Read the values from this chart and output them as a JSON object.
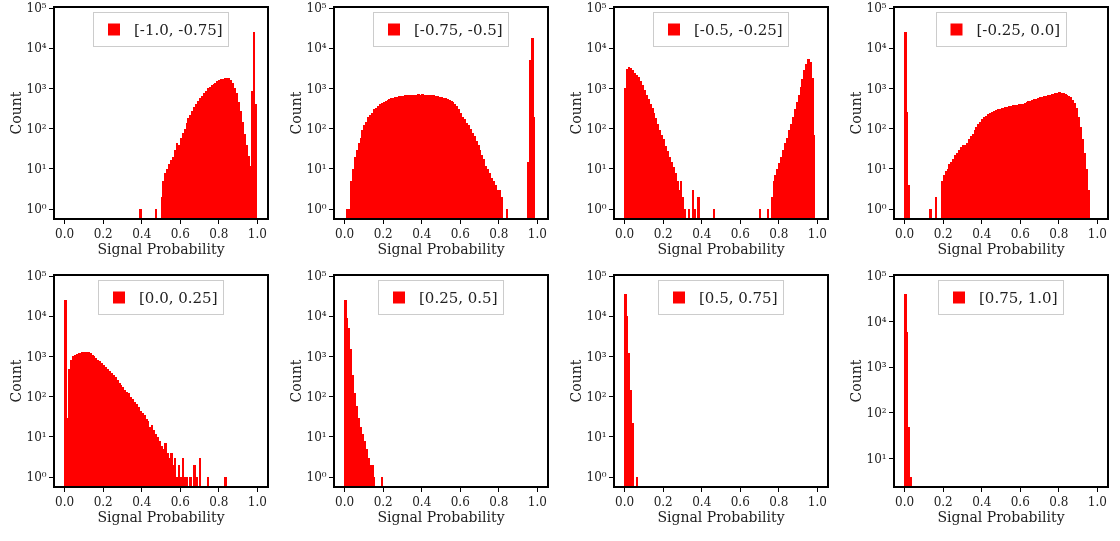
{
  "chart_data": [
    {
      "type": "histogram",
      "xlabel": "Signal Probability",
      "ylabel": "Count",
      "log": true,
      "legend": "top",
      "xlim": [
        -0.05,
        1.05
      ],
      "xticks": [
        {
          "value": 0,
          "label": "0.0"
        },
        {
          "value": 0.2,
          "label": "0.2"
        },
        {
          "value": 0.4,
          "label": "0.4"
        },
        {
          "value": 0.6,
          "label": "0.6"
        },
        {
          "value": 0.8,
          "label": "0.8"
        },
        {
          "value": 1,
          "label": "1.0"
        }
      ],
      "ylim": [
        0.6,
        100000
      ],
      "yticks": [
        {
          "value": 1,
          "label": "10⁰"
        },
        {
          "value": 10,
          "label": "10¹"
        },
        {
          "value": 100,
          "label": "10²"
        },
        {
          "value": 1000,
          "label": "10³"
        },
        {
          "value": 10000,
          "label": "10⁴"
        },
        {
          "value": 100000,
          "label": "10⁵"
        }
      ],
      "bins": [
        0.38,
        0.39,
        0.4,
        0.41,
        0.42,
        0.43,
        0.44,
        0.45,
        0.46,
        0.47,
        0.48,
        0.49,
        0.5,
        0.51,
        0.52,
        0.53,
        0.54,
        0.55,
        0.56,
        0.57,
        0.58,
        0.59,
        0.6,
        0.61,
        0.62,
        0.63,
        0.64,
        0.65,
        0.66,
        0.67,
        0.68,
        0.69,
        0.7,
        0.71,
        0.72,
        0.73,
        0.74,
        0.75,
        0.76,
        0.77,
        0.78,
        0.79,
        0.8,
        0.81,
        0.82,
        0.83,
        0.84,
        0.85,
        0.86,
        0.87,
        0.88,
        0.89,
        0.9,
        0.91,
        0.92,
        0.93,
        0.94,
        0.95,
        0.96,
        0.97,
        0.98,
        0.99,
        1.0
      ],
      "series": [
        {
          "name": "[-1.0, -0.75]",
          "color": "#ff0000",
          "values": [
            null,
            1,
            null,
            null,
            null,
            null,
            null,
            null,
            null,
            1,
            null,
            null,
            2,
            5,
            8,
            10,
            13,
            17,
            20,
            30,
            44,
            40,
            60,
            80,
            100,
            135,
            180,
            220,
            280,
            340,
            400,
            500,
            570,
            660,
            750,
            850,
            1000,
            1080,
            1200,
            1300,
            1400,
            1500,
            1600,
            1700,
            1750,
            1800,
            1850,
            1800,
            1650,
            1350,
            1050,
            750,
            470,
            280,
            150,
            75,
            40,
            21,
            12,
            850,
            25000,
            400
          ]
        }
      ]
    },
    {
      "type": "histogram",
      "xlabel": "Signal Probability",
      "ylabel": "Count",
      "log": true,
      "legend": "top",
      "xlim": [
        -0.05,
        1.05
      ],
      "xticks": [
        {
          "value": 0,
          "label": "0.0"
        },
        {
          "value": 0.2,
          "label": "0.2"
        },
        {
          "value": 0.4,
          "label": "0.4"
        },
        {
          "value": 0.6,
          "label": "0.6"
        },
        {
          "value": 0.8,
          "label": "0.8"
        },
        {
          "value": 1,
          "label": "1.0"
        }
      ],
      "ylim": [
        0.6,
        100000
      ],
      "yticks": [
        {
          "value": 1,
          "label": "10⁰"
        },
        {
          "value": 10,
          "label": "10¹"
        },
        {
          "value": 100,
          "label": "10²"
        },
        {
          "value": 1000,
          "label": "10³"
        },
        {
          "value": 10000,
          "label": "10⁴"
        },
        {
          "value": 100000,
          "label": "10⁵"
        }
      ],
      "bins": [
        0.01,
        0.02,
        0.03,
        0.04,
        0.05,
        0.06,
        0.07,
        0.08,
        0.09,
        0.1,
        0.11,
        0.12,
        0.13,
        0.14,
        0.15,
        0.16,
        0.17,
        0.18,
        0.19,
        0.2,
        0.21,
        0.22,
        0.23,
        0.24,
        0.25,
        0.26,
        0.27,
        0.28,
        0.29,
        0.3,
        0.31,
        0.32,
        0.33,
        0.34,
        0.35,
        0.36,
        0.37,
        0.38,
        0.39,
        0.4,
        0.41,
        0.42,
        0.43,
        0.44,
        0.45,
        0.46,
        0.47,
        0.48,
        0.49,
        0.5,
        0.51,
        0.52,
        0.53,
        0.54,
        0.55,
        0.56,
        0.57,
        0.58,
        0.59,
        0.6,
        0.61,
        0.62,
        0.63,
        0.64,
        0.65,
        0.66,
        0.67,
        0.68,
        0.69,
        0.7,
        0.71,
        0.72,
        0.73,
        0.74,
        0.75,
        0.76,
        0.77,
        0.78,
        0.79,
        0.8,
        0.81,
        0.82,
        0.83,
        0.84,
        0.85,
        0.86,
        0.87,
        0.88,
        0.89,
        0.9,
        0.91,
        0.92,
        0.93,
        0.94,
        0.95,
        0.96,
        0.97,
        0.98,
        0.99
      ],
      "series": [
        {
          "name": "[-0.75, -0.5]",
          "color": "#ff0000",
          "values": [
            1,
            1,
            5,
            10,
            20,
            30,
            45,
            60,
            90,
            120,
            150,
            190,
            220,
            250,
            300,
            330,
            370,
            400,
            430,
            460,
            490,
            520,
            540,
            570,
            590,
            610,
            620,
            640,
            650,
            660,
            670,
            680,
            690,
            690,
            700,
            700,
            700,
            710,
            700,
            710,
            700,
            700,
            690,
            690,
            680,
            670,
            660,
            640,
            620,
            600,
            590,
            570,
            550,
            530,
            500,
            470,
            420,
            360,
            300,
            240,
            200,
            170,
            140,
            120,
            100,
            80,
            65,
            50,
            40,
            30,
            22,
            18,
            12,
            10,
            8,
            6,
            5,
            4,
            3,
            3,
            2,
            null,
            null,
            1,
            null,
            null,
            null,
            null,
            null,
            null,
            null,
            null,
            null,
            null,
            15,
            5000,
            18000,
            200
          ]
        }
      ]
    },
    {
      "type": "histogram",
      "xlabel": "Signal Probability",
      "ylabel": "Count",
      "log": true,
      "legend": "top",
      "xlim": [
        -0.05,
        1.05
      ],
      "xticks": [
        {
          "value": 0,
          "label": "0.0"
        },
        {
          "value": 0.2,
          "label": "0.2"
        },
        {
          "value": 0.4,
          "label": "0.4"
        },
        {
          "value": 0.6,
          "label": "0.6"
        },
        {
          "value": 0.8,
          "label": "0.8"
        },
        {
          "value": 1,
          "label": "1.0"
        }
      ],
      "ylim": [
        0.6,
        100000
      ],
      "yticks": [
        {
          "value": 1,
          "label": "10⁰"
        },
        {
          "value": 10,
          "label": "10¹"
        },
        {
          "value": 100,
          "label": "10²"
        },
        {
          "value": 1000,
          "label": "10³"
        },
        {
          "value": 10000,
          "label": "10⁴"
        },
        {
          "value": 100000,
          "label": "10⁵"
        }
      ],
      "bins": [
        0.0,
        0.01,
        0.02,
        0.03,
        0.04,
        0.05,
        0.06,
        0.07,
        0.08,
        0.09,
        0.1,
        0.11,
        0.12,
        0.13,
        0.14,
        0.15,
        0.16,
        0.17,
        0.18,
        0.19,
        0.2,
        0.21,
        0.22,
        0.23,
        0.24,
        0.25,
        0.26,
        0.27,
        0.28,
        0.29,
        0.3,
        0.31,
        0.32,
        0.33,
        0.34,
        0.35,
        0.36,
        0.37,
        0.38,
        0.39,
        0.4,
        0.41,
        0.42,
        0.43,
        0.44,
        0.45,
        0.46,
        0.47,
        0.48,
        0.49,
        0.5,
        0.51,
        0.52,
        0.53,
        0.54,
        0.55,
        0.56,
        0.57,
        0.58,
        0.59,
        0.6,
        0.61,
        0.62,
        0.63,
        0.64,
        0.65,
        0.66,
        0.67,
        0.68,
        0.69,
        0.7,
        0.71,
        0.72,
        0.73,
        0.74,
        0.75,
        0.76,
        0.77,
        0.78,
        0.79,
        0.8,
        0.81,
        0.82,
        0.83,
        0.84,
        0.85,
        0.86,
        0.87,
        0.88,
        0.89,
        0.9,
        0.91,
        0.92,
        0.93,
        0.94,
        0.95,
        0.96,
        0.97,
        0.98,
        0.99
      ],
      "series": [
        {
          "name": "[-0.5, -0.25]",
          "color": "#ff0000",
          "values": [
            1000,
            3000,
            3500,
            3200,
            2800,
            2400,
            2100,
            1900,
            1500,
            1200,
            900,
            700,
            550,
            420,
            320,
            250,
            180,
            130,
            95,
            70,
            55,
            38,
            28,
            20,
            15,
            11,
            8,
            5,
            3,
            5,
            2,
            1,
            null,
            1,
            null,
            3,
            1,
            null,
            2,
            null,
            null,
            null,
            null,
            null,
            null,
            null,
            1,
            null,
            null,
            null,
            null,
            null,
            null,
            null,
            null,
            null,
            null,
            null,
            null,
            null,
            null,
            null,
            null,
            null,
            null,
            null,
            null,
            null,
            null,
            null,
            1,
            null,
            null,
            null,
            1,
            null,
            2,
            5,
            7,
            10,
            14,
            20,
            30,
            45,
            60,
            90,
            130,
            200,
            300,
            450,
            700,
            1100,
            1700,
            2800,
            4000,
            5500,
            4500,
            1800,
            70
          ]
        }
      ]
    },
    {
      "type": "histogram",
      "xlabel": "Signal Probability",
      "ylabel": "Count",
      "log": true,
      "legend": "top",
      "xlim": [
        -0.05,
        1.05
      ],
      "xticks": [
        {
          "value": 0,
          "label": "0.0"
        },
        {
          "value": 0.2,
          "label": "0.2"
        },
        {
          "value": 0.4,
          "label": "0.4"
        },
        {
          "value": 0.6,
          "label": "0.6"
        },
        {
          "value": 0.8,
          "label": "0.8"
        },
        {
          "value": 1,
          "label": "1.0"
        }
      ],
      "ylim": [
        0.6,
        100000
      ],
      "yticks": [
        {
          "value": 1,
          "label": "10⁰"
        },
        {
          "value": 10,
          "label": "10¹"
        },
        {
          "value": 100,
          "label": "10²"
        },
        {
          "value": 1000,
          "label": "10³"
        },
        {
          "value": 10000,
          "label": "10⁴"
        },
        {
          "value": 100000,
          "label": "10⁵"
        }
      ],
      "bins": [
        0.0,
        0.01,
        0.02,
        0.03,
        0.04,
        0.05,
        0.06,
        0.07,
        0.08,
        0.09,
        0.1,
        0.11,
        0.12,
        0.13,
        0.14,
        0.15,
        0.16,
        0.17,
        0.18,
        0.19,
        0.2,
        0.21,
        0.22,
        0.23,
        0.24,
        0.25,
        0.26,
        0.27,
        0.28,
        0.29,
        0.3,
        0.31,
        0.32,
        0.33,
        0.34,
        0.35,
        0.36,
        0.37,
        0.38,
        0.39,
        0.4,
        0.41,
        0.42,
        0.43,
        0.44,
        0.45,
        0.46,
        0.47,
        0.48,
        0.49,
        0.5,
        0.51,
        0.52,
        0.53,
        0.54,
        0.55,
        0.56,
        0.57,
        0.58,
        0.59,
        0.6,
        0.61,
        0.62,
        0.63,
        0.64,
        0.65,
        0.66,
        0.67,
        0.68,
        0.69,
        0.7,
        0.71,
        0.72,
        0.73,
        0.74,
        0.75,
        0.76,
        0.77,
        0.78,
        0.79,
        0.8,
        0.81,
        0.82,
        0.83,
        0.84,
        0.85,
        0.86,
        0.87,
        0.88,
        0.89,
        0.9,
        0.91,
        0.92,
        0.93,
        0.94,
        0.95,
        0.96
      ],
      "series": [
        {
          "name": "[-0.25, 0.0]",
          "color": "#ff0000",
          "values": [
            25000,
            260,
            4,
            null,
            null,
            null,
            null,
            null,
            null,
            null,
            null,
            null,
            null,
            1,
            null,
            null,
            2,
            null,
            null,
            5,
            7,
            9,
            10,
            13,
            15,
            18,
            22,
            25,
            30,
            35,
            40,
            40,
            45,
            55,
            65,
            75,
            90,
            110,
            130,
            150,
            170,
            190,
            210,
            230,
            250,
            265,
            280,
            290,
            300,
            310,
            320,
            330,
            340,
            350,
            360,
            370,
            380,
            380,
            390,
            400,
            410,
            420,
            440,
            460,
            480,
            500,
            520,
            540,
            560,
            580,
            600,
            620,
            640,
            660,
            680,
            700,
            720,
            740,
            760,
            780,
            800,
            790,
            770,
            740,
            700,
            650,
            600,
            520,
            430,
            320,
            200,
            110,
            55,
            25,
            10,
            3
          ]
        }
      ]
    },
    {
      "type": "histogram",
      "xlabel": "Signal Probability",
      "ylabel": "Count",
      "log": true,
      "legend": "top",
      "xlim": [
        -0.05,
        1.05
      ],
      "xticks": [
        {
          "value": 0,
          "label": "0.0"
        },
        {
          "value": 0.2,
          "label": "0.2"
        },
        {
          "value": 0.4,
          "label": "0.4"
        },
        {
          "value": 0.6,
          "label": "0.6"
        },
        {
          "value": 0.8,
          "label": "0.8"
        },
        {
          "value": 1,
          "label": "1.0"
        }
      ],
      "ylim": [
        0.6,
        100000
      ],
      "yticks": [
        {
          "value": 1,
          "label": "10⁰"
        },
        {
          "value": 10,
          "label": "10¹"
        },
        {
          "value": 100,
          "label": "10²"
        },
        {
          "value": 1000,
          "label": "10³"
        },
        {
          "value": 10000,
          "label": "10⁴"
        },
        {
          "value": 100000,
          "label": "10⁵"
        }
      ],
      "bins": [
        0.0,
        0.01,
        0.02,
        0.03,
        0.04,
        0.05,
        0.06,
        0.07,
        0.08,
        0.09,
        0.1,
        0.11,
        0.12,
        0.13,
        0.14,
        0.15,
        0.16,
        0.17,
        0.18,
        0.19,
        0.2,
        0.21,
        0.22,
        0.23,
        0.24,
        0.25,
        0.26,
        0.27,
        0.28,
        0.29,
        0.3,
        0.31,
        0.32,
        0.33,
        0.34,
        0.35,
        0.36,
        0.37,
        0.38,
        0.39,
        0.4,
        0.41,
        0.42,
        0.43,
        0.44,
        0.45,
        0.46,
        0.47,
        0.48,
        0.49,
        0.5,
        0.51,
        0.52,
        0.53,
        0.54,
        0.55,
        0.56,
        0.57,
        0.58,
        0.59,
        0.6,
        0.61,
        0.62,
        0.63,
        0.64,
        0.65,
        0.66,
        0.67,
        0.68,
        0.69,
        0.7,
        0.71,
        0.72,
        0.73,
        0.74,
        0.75,
        0.76,
        0.77,
        0.78,
        0.79,
        0.8,
        0.81,
        0.82,
        0.83,
        0.84
      ],
      "series": [
        {
          "name": "[0.0, 0.25]",
          "color": "#ff0000",
          "values": [
            25000,
            30,
            500,
            800,
            1000,
            1100,
            1150,
            1200,
            1250,
            1280,
            1300,
            1300,
            1280,
            1200,
            1100,
            1000,
            900,
            820,
            750,
            680,
            620,
            560,
            500,
            440,
            390,
            340,
            300,
            260,
            220,
            190,
            170,
            150,
            130,
            120,
            100,
            85,
            75,
            65,
            55,
            45,
            40,
            35,
            28,
            25,
            18,
            20,
            15,
            12,
            10,
            8,
            6,
            5,
            7,
            4,
            3,
            4,
            2,
            3,
            1,
            2,
            1,
            3,
            1,
            1,
            null,
            1,
            null,
            2,
            1,
            null,
            3,
            null,
            null,
            null,
            1,
            null,
            null,
            null,
            null,
            null,
            null,
            null,
            null,
            1
          ]
        }
      ]
    },
    {
      "type": "histogram",
      "xlabel": "Signal Probability",
      "ylabel": "Count",
      "log": true,
      "legend": "top",
      "xlim": [
        -0.05,
        1.05
      ],
      "xticks": [
        {
          "value": 0,
          "label": "0.0"
        },
        {
          "value": 0.2,
          "label": "0.2"
        },
        {
          "value": 0.4,
          "label": "0.4"
        },
        {
          "value": 0.6,
          "label": "0.6"
        },
        {
          "value": 0.8,
          "label": "0.8"
        },
        {
          "value": 1,
          "label": "1.0"
        }
      ],
      "ylim": [
        0.6,
        100000
      ],
      "yticks": [
        {
          "value": 1,
          "label": "10⁰"
        },
        {
          "value": 10,
          "label": "10¹"
        },
        {
          "value": 100,
          "label": "10²"
        },
        {
          "value": 1000,
          "label": "10³"
        },
        {
          "value": 10000,
          "label": "10⁴"
        },
        {
          "value": 100000,
          "label": "10⁵"
        }
      ],
      "bins": [
        0.0,
        0.01,
        0.02,
        0.03,
        0.04,
        0.05,
        0.06,
        0.07,
        0.08,
        0.09,
        0.1,
        0.11,
        0.12,
        0.13,
        0.14,
        0.15,
        0.16,
        0.17,
        0.18,
        0.19,
        0.2
      ],
      "series": [
        {
          "name": "[0.25, 0.5]",
          "color": "#ff0000",
          "values": [
            25000,
            9000,
            5000,
            1500,
            350,
            120,
            60,
            30,
            18,
            12,
            8,
            5,
            3,
            2,
            2,
            1,
            null,
            null,
            null,
            1
          ]
        }
      ]
    },
    {
      "type": "histogram",
      "xlabel": "Signal Probability",
      "ylabel": "Count",
      "log": true,
      "legend": "top",
      "xlim": [
        -0.05,
        1.05
      ],
      "xticks": [
        {
          "value": 0,
          "label": "0.0"
        },
        {
          "value": 0.2,
          "label": "0.2"
        },
        {
          "value": 0.4,
          "label": "0.4"
        },
        {
          "value": 0.6,
          "label": "0.6"
        },
        {
          "value": 0.8,
          "label": "0.8"
        },
        {
          "value": 1,
          "label": "1.0"
        }
      ],
      "ylim": [
        0.6,
        100000
      ],
      "yticks": [
        {
          "value": 1,
          "label": "10⁰"
        },
        {
          "value": 10,
          "label": "10¹"
        },
        {
          "value": 100,
          "label": "10²"
        },
        {
          "value": 1000,
          "label": "10³"
        },
        {
          "value": 10000,
          "label": "10⁴"
        },
        {
          "value": 100000,
          "label": "10⁵"
        }
      ],
      "bins": [
        0.0,
        0.01,
        0.02,
        0.03,
        0.04,
        0.05,
        0.06,
        0.07
      ],
      "series": [
        {
          "name": "[0.5, 0.75]",
          "color": "#ff0000",
          "values": [
            35000,
            10000,
            1200,
            150,
            22,
            null,
            1
          ]
        }
      ]
    },
    {
      "type": "histogram",
      "xlabel": "Signal Probability",
      "ylabel": "Count",
      "log": true,
      "legend": "top",
      "xlim": [
        -0.05,
        1.05
      ],
      "xticks": [
        {
          "value": 0,
          "label": "0.0"
        },
        {
          "value": 0.2,
          "label": "0.2"
        },
        {
          "value": 0.4,
          "label": "0.4"
        },
        {
          "value": 0.6,
          "label": "0.6"
        },
        {
          "value": 0.8,
          "label": "0.8"
        },
        {
          "value": 1,
          "label": "1.0"
        }
      ],
      "ylim": [
        2.5,
        100000
      ],
      "yticks": [
        {
          "value": 10,
          "label": "10¹"
        },
        {
          "value": 100,
          "label": "10²"
        },
        {
          "value": 1000,
          "label": "10³"
        },
        {
          "value": 10000,
          "label": "10⁴"
        },
        {
          "value": 100000,
          "label": "10⁵"
        }
      ],
      "bins": [
        0.0,
        0.01,
        0.02,
        0.03,
        0.04
      ],
      "series": [
        {
          "name": "[0.75, 1.0]",
          "color": "#ff0000",
          "values": [
            40000,
            6000,
            50,
            4
          ]
        }
      ]
    }
  ]
}
